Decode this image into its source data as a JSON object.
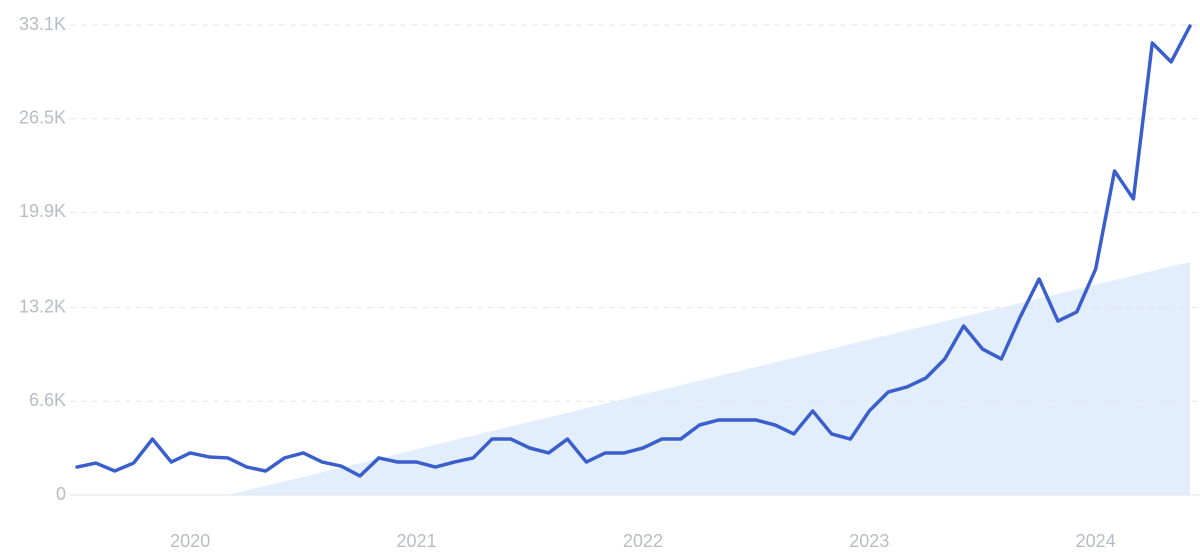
{
  "chart_data": {
    "type": "line",
    "categories": [
      null,
      null,
      null,
      null,
      null,
      null,
      "2020",
      null,
      null,
      null,
      null,
      null,
      null,
      null,
      null,
      null,
      null,
      null,
      "2021",
      null,
      null,
      null,
      null,
      null,
      null,
      null,
      null,
      null,
      null,
      null,
      "2022",
      null,
      null,
      null,
      null,
      null,
      null,
      null,
      null,
      null,
      null,
      null,
      "2023",
      null,
      null,
      null,
      null,
      null,
      null,
      null,
      null,
      null,
      null,
      null,
      "2024",
      null,
      null,
      null,
      null,
      null
    ],
    "series": [
      {
        "type": "line",
        "color": "#3a5fcd",
        "values": [
          1970,
          2250,
          1690,
          2250,
          3940,
          2320,
          2960,
          2680,
          2610,
          1970,
          1690,
          2610,
          2960,
          2320,
          2040,
          1340,
          2610,
          2320,
          2320,
          1970,
          2320,
          2610,
          3940,
          3940,
          3310,
          2960,
          3940,
          2320,
          2960,
          2960,
          3310,
          3940,
          3940,
          4930,
          5280,
          5280,
          5280,
          4930,
          4300,
          5920,
          4300,
          3940,
          5920,
          7250,
          7610,
          8240,
          9580,
          11900,
          10280,
          9580,
          12540,
          15210,
          12250,
          12890,
          15920,
          22820,
          20850,
          31830,
          30500,
          33030
        ]
      },
      {
        "type": "area",
        "color": "#e3eefc",
        "values": [
          null,
          null,
          null,
          null,
          null,
          null,
          null,
          null,
          0,
          322,
          644,
          966,
          1288,
          1610,
          1932,
          2254,
          2576,
          2898,
          3220,
          3542,
          3864,
          4186,
          4508,
          4830,
          5152,
          5474,
          5796,
          6118,
          6440,
          6762,
          7084,
          7406,
          7728,
          8050,
          8372,
          8694,
          9016,
          9338,
          9660,
          9982,
          10304,
          10626,
          10948,
          11270,
          11592,
          11914,
          12236,
          12558,
          12880,
          13202,
          13524,
          13846,
          14168,
          14490,
          14812,
          15134,
          15456,
          15778,
          16100,
          16422
        ]
      }
    ],
    "ylim": [
      0,
      33100
    ],
    "yticks": [
      0,
      {
        "value": 6600,
        "label": "6.6K"
      },
      {
        "value": 13200,
        "label": "13.2K"
      },
      {
        "value": 19900,
        "label": "19.9K"
      },
      {
        "value": 26500,
        "label": "26.5K"
      },
      {
        "value": 33100,
        "label": "33.1K"
      }
    ],
    "grid": true
  }
}
